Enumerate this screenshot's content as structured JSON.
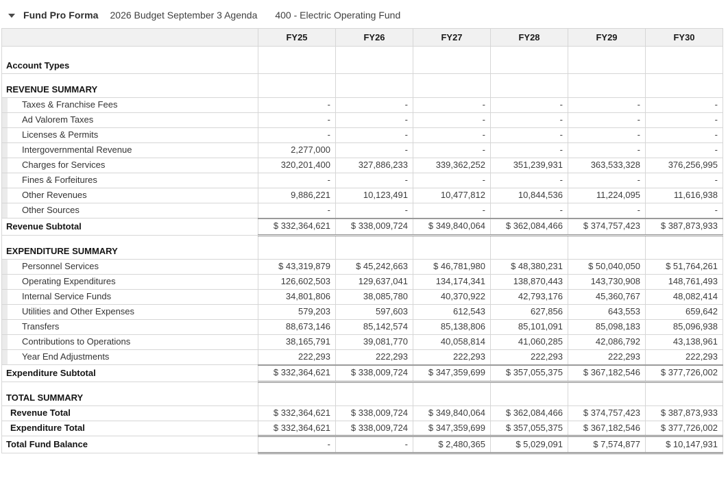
{
  "header": {
    "title": "Fund Pro Forma",
    "budget_name": "2026 Budget September 3 Agenda",
    "fund_name": "400 - Electric Operating Fund"
  },
  "colors": {
    "header_row_bg": "#f1f1f1",
    "grid_border": "#d6d6d6",
    "accounting_rule": "#8f8f8f",
    "indent_strip": "#ebebeb",
    "text": "#333333"
  },
  "table": {
    "columns": [
      "FY25",
      "FY26",
      "FY27",
      "FY28",
      "FY29",
      "FY30"
    ],
    "rows": [
      {
        "type": "section-tall",
        "label": "Account Types"
      },
      {
        "type": "section",
        "label": "REVENUE SUMMARY"
      },
      {
        "type": "detail",
        "label": "Taxes & Franchise Fees",
        "values": [
          "-",
          "-",
          "-",
          "-",
          "-",
          "-"
        ]
      },
      {
        "type": "detail",
        "label": "Ad Valorem Taxes",
        "values": [
          "-",
          "-",
          "-",
          "-",
          "-",
          "-"
        ]
      },
      {
        "type": "detail",
        "label": "Licenses & Permits",
        "values": [
          "-",
          "-",
          "-",
          "-",
          "-",
          "-"
        ]
      },
      {
        "type": "detail",
        "label": "Intergovernmental Revenue",
        "values": [
          "2,277,000",
          "-",
          "-",
          "-",
          "-",
          "-"
        ]
      },
      {
        "type": "detail",
        "label": "Charges for Services",
        "values": [
          "320,201,400",
          "327,886,233",
          "339,362,252",
          "351,239,931",
          "363,533,328",
          "376,256,995"
        ]
      },
      {
        "type": "detail",
        "label": "Fines & Forfeitures",
        "values": [
          "-",
          "-",
          "-",
          "-",
          "-",
          "-"
        ]
      },
      {
        "type": "detail",
        "label": "Other Revenues",
        "values": [
          "9,886,221",
          "10,123,491",
          "10,477,812",
          "10,844,536",
          "11,224,095",
          "11,616,938"
        ]
      },
      {
        "type": "detail",
        "label": "Other Sources",
        "values": [
          "-",
          "-",
          "-",
          "-",
          "-",
          "-"
        ]
      },
      {
        "type": "subtotal",
        "label": "Revenue Subtotal",
        "values": [
          "$ 332,364,621",
          "$ 338,009,724",
          "$ 349,840,064",
          "$ 362,084,466",
          "$ 374,757,423",
          "$ 387,873,933"
        ]
      },
      {
        "type": "section",
        "label": "EXPENDITURE SUMMARY"
      },
      {
        "type": "detail",
        "label": "Personnel Services",
        "values": [
          "$ 43,319,879",
          "$ 45,242,663",
          "$ 46,781,980",
          "$ 48,380,231",
          "$ 50,040,050",
          "$ 51,764,261"
        ]
      },
      {
        "type": "detail",
        "label": "Operating Expenditures",
        "values": [
          "126,602,503",
          "129,637,041",
          "134,174,341",
          "138,870,443",
          "143,730,908",
          "148,761,493"
        ]
      },
      {
        "type": "detail",
        "label": "Internal Service Funds",
        "values": [
          "34,801,806",
          "38,085,780",
          "40,370,922",
          "42,793,176",
          "45,360,767",
          "48,082,414"
        ]
      },
      {
        "type": "detail",
        "label": "Utilities and Other Expenses",
        "values": [
          "579,203",
          "597,603",
          "612,543",
          "627,856",
          "643,553",
          "659,642"
        ]
      },
      {
        "type": "detail",
        "label": "Transfers",
        "values": [
          "88,673,146",
          "85,142,574",
          "85,138,806",
          "85,101,091",
          "85,098,183",
          "85,096,938"
        ]
      },
      {
        "type": "detail",
        "label": "Contributions to Operations",
        "values": [
          "38,165,791",
          "39,081,770",
          "40,058,814",
          "41,060,285",
          "42,086,792",
          "43,138,961"
        ]
      },
      {
        "type": "detail",
        "label": "Year End Adjustments",
        "values": [
          "222,293",
          "222,293",
          "222,293",
          "222,293",
          "222,293",
          "222,293"
        ]
      },
      {
        "type": "subtotal",
        "label": "Expenditure Subtotal",
        "values": [
          "$ 332,364,621",
          "$ 338,009,724",
          "$ 347,359,699",
          "$ 357,055,375",
          "$ 367,182,546",
          "$ 377,726,002"
        ]
      },
      {
        "type": "section",
        "label": "TOTAL SUMMARY"
      },
      {
        "type": "total",
        "label": "Revenue Total",
        "values": [
          "$ 332,364,621",
          "$ 338,009,724",
          "$ 349,840,064",
          "$ 362,084,466",
          "$ 374,757,423",
          "$ 387,873,933"
        ]
      },
      {
        "type": "total",
        "label": "Expenditure Total",
        "values": [
          "$ 332,364,621",
          "$ 338,009,724",
          "$ 347,359,699",
          "$ 357,055,375",
          "$ 367,182,546",
          "$ 377,726,002"
        ]
      },
      {
        "type": "grandtotal",
        "label": "Total Fund Balance",
        "values": [
          "-",
          "-",
          "$ 2,480,365",
          "$ 5,029,091",
          "$ 7,574,877",
          "$ 10,147,931"
        ]
      }
    ]
  }
}
